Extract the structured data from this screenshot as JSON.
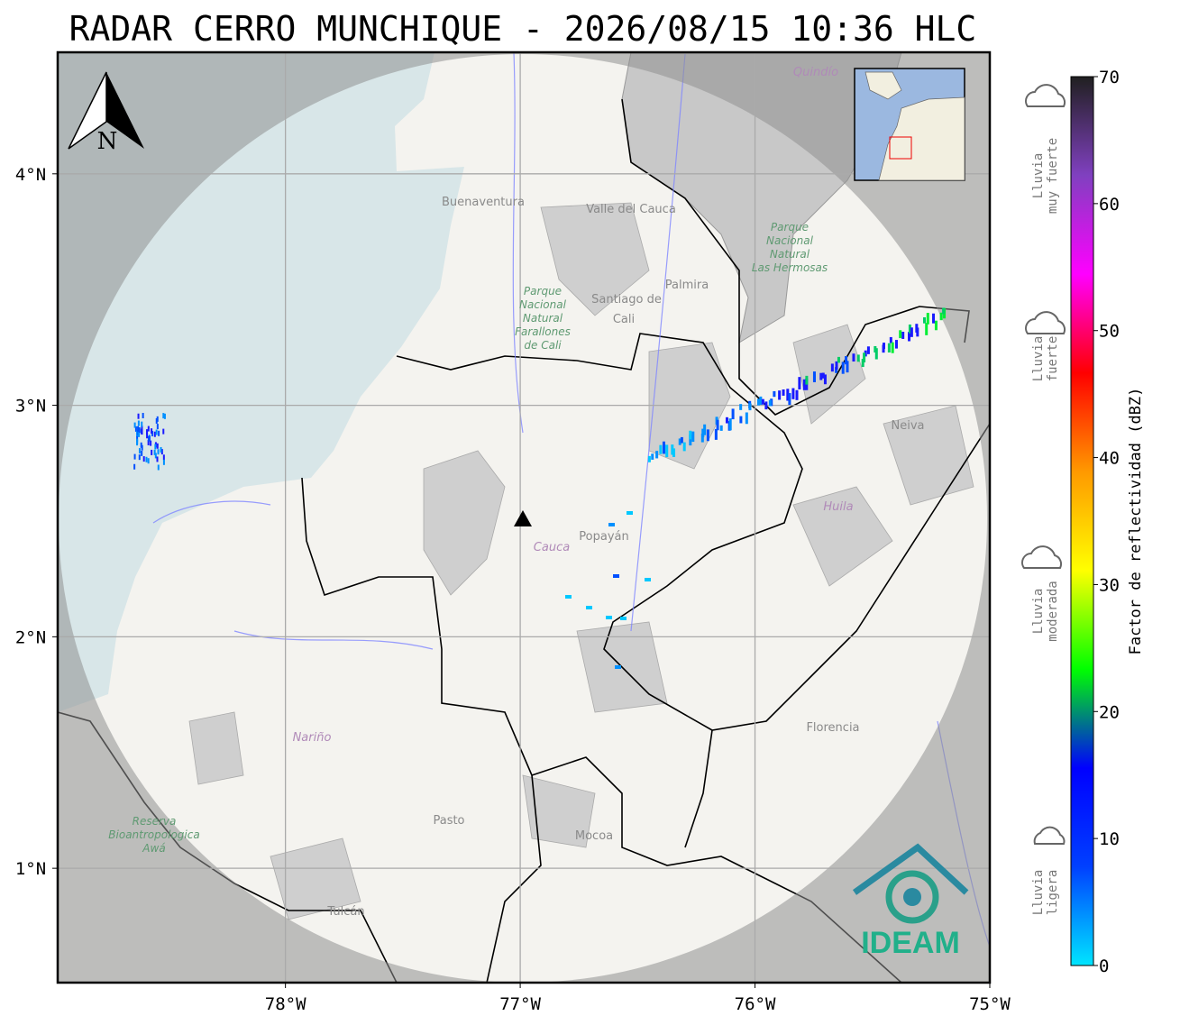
{
  "title": "RADAR CERRO MUNCHIQUE - 2026/08/15 10:36 HLC",
  "map": {
    "xlim": [
      -78.97,
      -75
    ],
    "ylim": [
      0.506,
      4.525
    ],
    "lon_ticks": [
      {
        "value": -78,
        "label": "78°W"
      },
      {
        "value": -77,
        "label": "77°W"
      },
      {
        "value": -76,
        "label": "76°W"
      },
      {
        "value": -75,
        "label": "75°W"
      }
    ],
    "lat_ticks": [
      {
        "value": 4,
        "label": "4°N"
      },
      {
        "value": 3,
        "label": "3°N"
      },
      {
        "value": 2,
        "label": "2°N"
      },
      {
        "value": 1,
        "label": "1°N"
      }
    ],
    "grid": true,
    "north_label": "N",
    "places": [
      "Buenaventura",
      "Valle del Cauca",
      "Santiago de",
      "Cali",
      "Palmira",
      "Neiva",
      "Huila",
      "Popayán",
      "Cauca",
      "Nariño",
      "Pasto",
      "Mocoa",
      "Florencia",
      "Tulcán",
      "Quindío"
    ],
    "parks": [
      [
        "Parque",
        "Nacional",
        "Natural",
        "Farallones",
        "de Cali"
      ],
      [
        "Parque",
        "Nacional",
        "Natural",
        "Las Hermosas"
      ],
      [
        "Reserva",
        "Bioantropologica",
        "Awá"
      ]
    ],
    "logo": "IDEAM"
  },
  "colorbar": {
    "label": "Factor de reflectividad (dBZ)",
    "lim": [
      0,
      70
    ],
    "ticks": [
      0,
      10,
      20,
      30,
      40,
      50,
      60,
      70
    ],
    "colors": [
      "#00e5ff",
      "#0040ff",
      "#0000ff",
      "#00ff00",
      "#ffff00",
      "#ff9900",
      "#ff0000",
      "#ff00ff",
      "#8040c0",
      "#202020"
    ]
  },
  "rain_classes": [
    [
      "Lluvia",
      "muy fuerte"
    ],
    [
      "Lluvia",
      "fuerte"
    ],
    [
      "Lluvia",
      "moderada"
    ],
    [
      "Lluvia",
      "ligera"
    ]
  ]
}
